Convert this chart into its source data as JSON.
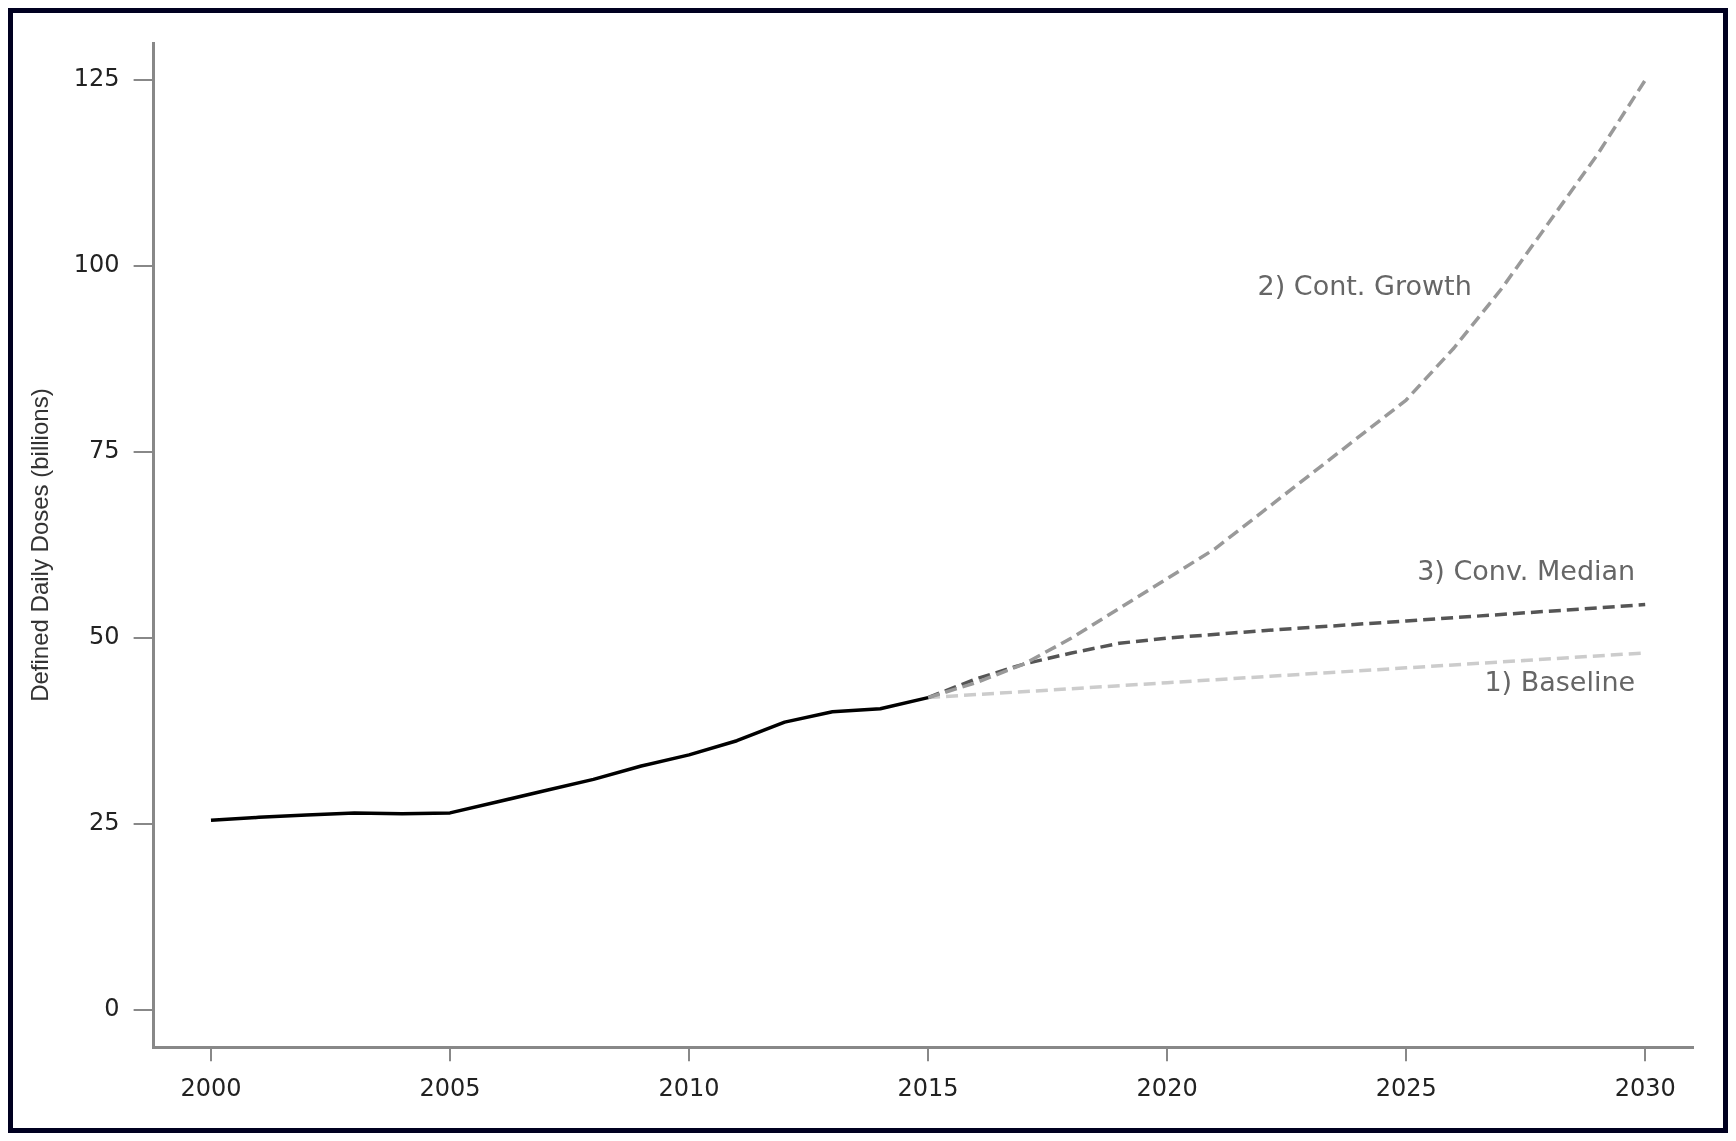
{
  "chart_data": {
    "type": "line",
    "ylabel": "Defined Daily Doses (billions)",
    "xlim": [
      1998.8,
      2031
    ],
    "xticks": [
      2000,
      2005,
      2010,
      2015,
      2020,
      2025,
      2030
    ],
    "ylim": [
      -5,
      130
    ],
    "yticks": [
      0,
      25,
      50,
      75,
      100,
      125
    ],
    "grid": false,
    "legend": false,
    "series": [
      {
        "color": "#000000",
        "line_style": "solid",
        "x": [
          2000,
          2001,
          2002,
          2003,
          2004,
          2005,
          2006,
          2007,
          2008,
          2009,
          2010,
          2011,
          2012,
          2013,
          2014,
          2015
        ],
        "values": [
          25.5,
          25.9,
          26.2,
          26.5,
          26.4,
          26.5,
          28,
          29.5,
          31,
          32.8,
          34.3,
          36.2,
          38.7,
          40.1,
          40.5,
          42
        ]
      },
      {
        "name": "2) Cont. Growth",
        "color": "#999999",
        "line_style": "dashed",
        "x": [
          2015,
          2016,
          2017,
          2018,
          2019,
          2020,
          2021,
          2022,
          2023,
          2024,
          2025,
          2026,
          2027,
          2028,
          2029,
          2030
        ],
        "values": [
          42,
          44,
          46.5,
          50,
          54,
          58,
          62,
          67,
          72,
          77,
          82,
          89,
          97,
          106,
          115,
          125
        ]
      },
      {
        "name": "3) Conv. Median",
        "color": "#555555",
        "line_style": "dashed",
        "x": [
          2015,
          2016,
          2017,
          2018,
          2019,
          2020,
          2022,
          2025,
          2030
        ],
        "values": [
          42,
          44.5,
          46.5,
          48,
          49.3,
          50,
          51,
          52.3,
          54.5
        ]
      },
      {
        "name": "1) Baseline",
        "color": "#cccccc",
        "line_style": "dashed",
        "x": [
          2015,
          2020,
          2025,
          2030
        ],
        "values": [
          42,
          44,
          46,
          48
        ]
      }
    ]
  }
}
